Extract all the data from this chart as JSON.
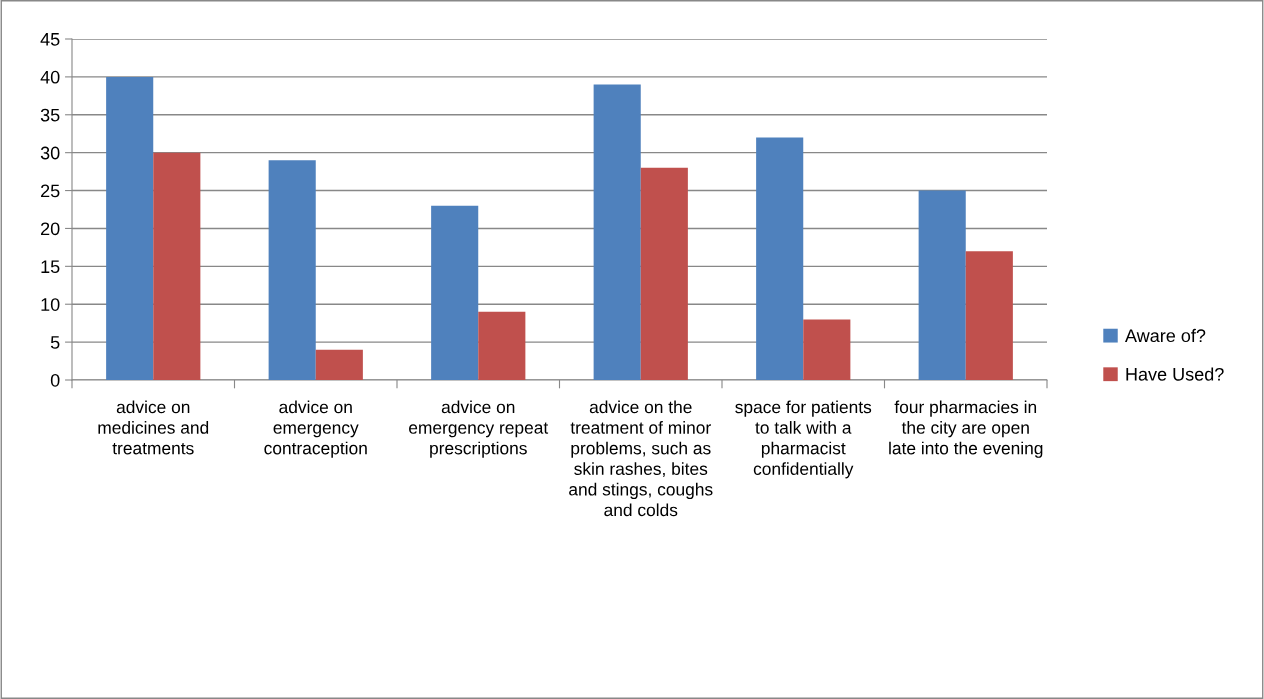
{
  "chart_data": {
    "type": "bar",
    "categories": [
      "advice on medicines and treatments",
      "advice on emergency contraception",
      "advice on emergency repeat prescriptions",
      "advice on the treatment of minor problems, such as skin rashes, bites and stings, coughs and colds",
      "space for patients to talk with a pharmacist confidentially",
      "four pharmacies in the city are open late into the evening"
    ],
    "series": [
      {
        "name": "Aware of?",
        "color": "#4f81bd",
        "values": [
          40,
          29,
          23,
          39,
          32,
          25
        ]
      },
      {
        "name": "Have Used?",
        "color": "#c0504d",
        "values": [
          30,
          4,
          9,
          28,
          8,
          17
        ]
      }
    ],
    "ylim": [
      0,
      45
    ],
    "yticks": [
      0,
      5,
      10,
      15,
      20,
      25,
      30,
      35,
      40,
      45
    ],
    "grid": "y",
    "legend": "right"
  }
}
